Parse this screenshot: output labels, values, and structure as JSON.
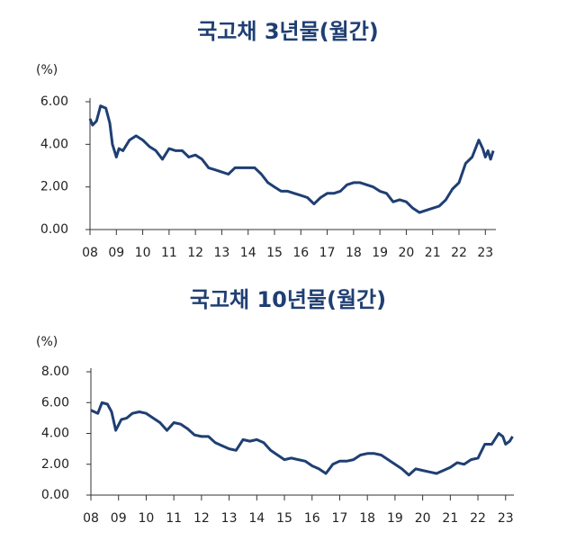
{
  "chart_data": [
    {
      "type": "line",
      "title": "국고채  3년물(월간)",
      "y_unit": "(%)",
      "color": "#1f3f73",
      "xlim": [
        2008,
        2023.4
      ],
      "ylim": [
        0,
        6
      ],
      "yticks": [
        {
          "value": 0,
          "label": "0.00"
        },
        {
          "value": 2,
          "label": "2.00"
        },
        {
          "value": 4,
          "label": "4.00"
        },
        {
          "value": 6,
          "label": "6.00"
        }
      ],
      "xticks": [
        {
          "value": 2008,
          "label": "08"
        },
        {
          "value": 2009,
          "label": "09"
        },
        {
          "value": 2010,
          "label": "10"
        },
        {
          "value": 2011,
          "label": "11"
        },
        {
          "value": 2012,
          "label": "12"
        },
        {
          "value": 2013,
          "label": "13"
        },
        {
          "value": 2014,
          "label": "14"
        },
        {
          "value": 2015,
          "label": "15"
        },
        {
          "value": 2016,
          "label": "16"
        },
        {
          "value": 2017,
          "label": "17"
        },
        {
          "value": 2018,
          "label": "18"
        },
        {
          "value": 2019,
          "label": "19"
        },
        {
          "value": 2020,
          "label": "20"
        },
        {
          "value": 2021,
          "label": "21"
        },
        {
          "value": 2022,
          "label": "22"
        },
        {
          "value": 2023,
          "label": "23"
        }
      ],
      "x": [
        2008.0,
        2008.1,
        2008.25,
        2008.4,
        2008.6,
        2008.75,
        2008.85,
        2009.0,
        2009.1,
        2009.25,
        2009.5,
        2009.75,
        2010.0,
        2010.25,
        2010.5,
        2010.75,
        2011.0,
        2011.25,
        2011.5,
        2011.75,
        2012.0,
        2012.25,
        2012.5,
        2012.75,
        2013.0,
        2013.25,
        2013.5,
        2013.75,
        2014.0,
        2014.25,
        2014.5,
        2014.75,
        2015.0,
        2015.25,
        2015.5,
        2015.75,
        2016.0,
        2016.25,
        2016.5,
        2016.75,
        2017.0,
        2017.25,
        2017.5,
        2017.75,
        2018.0,
        2018.25,
        2018.5,
        2018.75,
        2019.0,
        2019.25,
        2019.5,
        2019.75,
        2020.0,
        2020.25,
        2020.5,
        2020.75,
        2021.0,
        2021.25,
        2021.5,
        2021.75,
        2022.0,
        2022.25,
        2022.5,
        2022.75,
        2022.9,
        2023.0,
        2023.1,
        2023.2,
        2023.3
      ],
      "values": [
        5.2,
        4.9,
        5.1,
        5.8,
        5.7,
        5.0,
        4.0,
        3.4,
        3.8,
        3.7,
        4.2,
        4.4,
        4.2,
        3.9,
        3.7,
        3.3,
        3.8,
        3.7,
        3.7,
        3.4,
        3.5,
        3.3,
        2.9,
        2.8,
        2.7,
        2.6,
        2.9,
        2.9,
        2.9,
        2.9,
        2.6,
        2.2,
        2.0,
        1.8,
        1.8,
        1.7,
        1.6,
        1.5,
        1.2,
        1.5,
        1.7,
        1.7,
        1.8,
        2.1,
        2.2,
        2.2,
        2.1,
        2.0,
        1.8,
        1.7,
        1.3,
        1.4,
        1.3,
        1.0,
        0.8,
        0.9,
        1.0,
        1.1,
        1.4,
        1.9,
        2.2,
        3.1,
        3.4,
        4.2,
        3.8,
        3.4,
        3.7,
        3.3,
        3.7
      ]
    },
    {
      "type": "line",
      "title": "국고채  10년물(월간)",
      "y_unit": "(%)",
      "color": "#1f3f73",
      "xlim": [
        2008,
        2023.3
      ],
      "ylim": [
        0,
        8
      ],
      "yticks": [
        {
          "value": 0,
          "label": "0.00"
        },
        {
          "value": 2,
          "label": "2.00"
        },
        {
          "value": 4,
          "label": "4.00"
        },
        {
          "value": 6,
          "label": "6.00"
        },
        {
          "value": 8,
          "label": "8.00"
        }
      ],
      "xticks": [
        {
          "value": 2008,
          "label": "08"
        },
        {
          "value": 2009,
          "label": "09"
        },
        {
          "value": 2010,
          "label": "10"
        },
        {
          "value": 2011,
          "label": "11"
        },
        {
          "value": 2012,
          "label": "12"
        },
        {
          "value": 2013,
          "label": "13"
        },
        {
          "value": 2014,
          "label": "14"
        },
        {
          "value": 2015,
          "label": "15"
        },
        {
          "value": 2016,
          "label": "16"
        },
        {
          "value": 2017,
          "label": "17"
        },
        {
          "value": 2018,
          "label": "18"
        },
        {
          "value": 2019,
          "label": "19"
        },
        {
          "value": 2020,
          "label": "20"
        },
        {
          "value": 2021,
          "label": "21"
        },
        {
          "value": 2022,
          "label": "22"
        },
        {
          "value": 2023,
          "label": "23"
        }
      ],
      "x": [
        2008.0,
        2008.25,
        2008.4,
        2008.6,
        2008.75,
        2008.9,
        2009.1,
        2009.3,
        2009.5,
        2009.75,
        2010.0,
        2010.25,
        2010.5,
        2010.75,
        2011.0,
        2011.25,
        2011.5,
        2011.75,
        2012.0,
        2012.25,
        2012.5,
        2012.75,
        2013.0,
        2013.25,
        2013.5,
        2013.75,
        2014.0,
        2014.25,
        2014.5,
        2014.75,
        2015.0,
        2015.25,
        2015.5,
        2015.75,
        2016.0,
        2016.25,
        2016.5,
        2016.75,
        2017.0,
        2017.25,
        2017.5,
        2017.75,
        2018.0,
        2018.25,
        2018.5,
        2018.75,
        2019.0,
        2019.25,
        2019.5,
        2019.75,
        2020.0,
        2020.25,
        2020.5,
        2020.75,
        2021.0,
        2021.25,
        2021.5,
        2021.75,
        2022.0,
        2022.25,
        2022.5,
        2022.75,
        2022.9,
        2023.0,
        2023.15,
        2023.25
      ],
      "values": [
        5.5,
        5.3,
        6.0,
        5.9,
        5.4,
        4.2,
        4.9,
        5.0,
        5.3,
        5.4,
        5.3,
        5.0,
        4.7,
        4.2,
        4.7,
        4.6,
        4.3,
        3.9,
        3.8,
        3.8,
        3.4,
        3.2,
        3.0,
        2.9,
        3.6,
        3.5,
        3.6,
        3.4,
        2.9,
        2.6,
        2.3,
        2.4,
        2.3,
        2.2,
        1.9,
        1.7,
        1.4,
        2.0,
        2.2,
        2.2,
        2.3,
        2.6,
        2.7,
        2.7,
        2.6,
        2.3,
        2.0,
        1.7,
        1.3,
        1.7,
        1.6,
        1.5,
        1.4,
        1.6,
        1.8,
        2.1,
        2.0,
        2.3,
        2.4,
        3.3,
        3.3,
        4.0,
        3.8,
        3.3,
        3.5,
        3.8
      ]
    }
  ]
}
